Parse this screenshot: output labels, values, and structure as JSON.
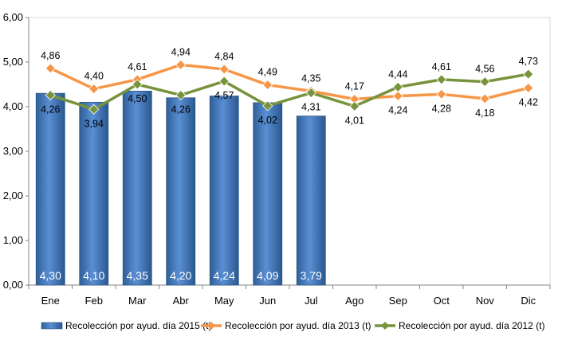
{
  "chart_data": {
    "type": "bar+line",
    "categories": [
      "Ene",
      "Feb",
      "Mar",
      "Abr",
      "May",
      "Jun",
      "Jul",
      "Ago",
      "Sep",
      "Oct",
      "Nov",
      "Dic"
    ],
    "y_ticks": [
      "0,00",
      "1,00",
      "2,00",
      "3,00",
      "4,00",
      "5,00",
      "6,00"
    ],
    "ylim": [
      0,
      6
    ],
    "grid": false,
    "legend_position": "bottom",
    "series": [
      {
        "name": "Recolección por ayud. día 2015 (t)",
        "type": "bar",
        "color": "#4f81bd",
        "values": [
          4.3,
          4.1,
          4.35,
          4.2,
          4.24,
          4.09,
          3.79,
          null,
          null,
          null,
          null,
          null
        ],
        "labels": [
          "4,30",
          "4,10",
          "4,35",
          "4,20",
          "4,24",
          "4,09",
          "3,79",
          "",
          "",
          "",
          "",
          ""
        ]
      },
      {
        "name": "Recolección por ayud. día 2013 (t)",
        "type": "line",
        "color": "#f79646",
        "values": [
          4.86,
          4.4,
          4.61,
          4.94,
          4.84,
          4.49,
          4.35,
          4.17,
          4.24,
          4.28,
          4.18,
          4.42
        ],
        "labels": [
          "4,86",
          "4,40",
          "4,61",
          "4,94",
          "4,84",
          "4,49",
          "4,35",
          "4,17",
          "4,24",
          "4,28",
          "4,18",
          "4,42"
        ]
      },
      {
        "name": "Recolección por ayud. día 2012 (t)",
        "type": "line",
        "color": "#77933c",
        "values": [
          4.26,
          3.94,
          4.5,
          4.26,
          4.57,
          4.02,
          4.31,
          4.01,
          4.44,
          4.61,
          4.56,
          4.73
        ],
        "labels": [
          "4,26",
          "3,94",
          "4,50",
          "4,26",
          "4,57",
          "4,02",
          "4,31",
          "4,01",
          "4,44",
          "4,61",
          "4,56",
          "4,73"
        ]
      }
    ]
  }
}
